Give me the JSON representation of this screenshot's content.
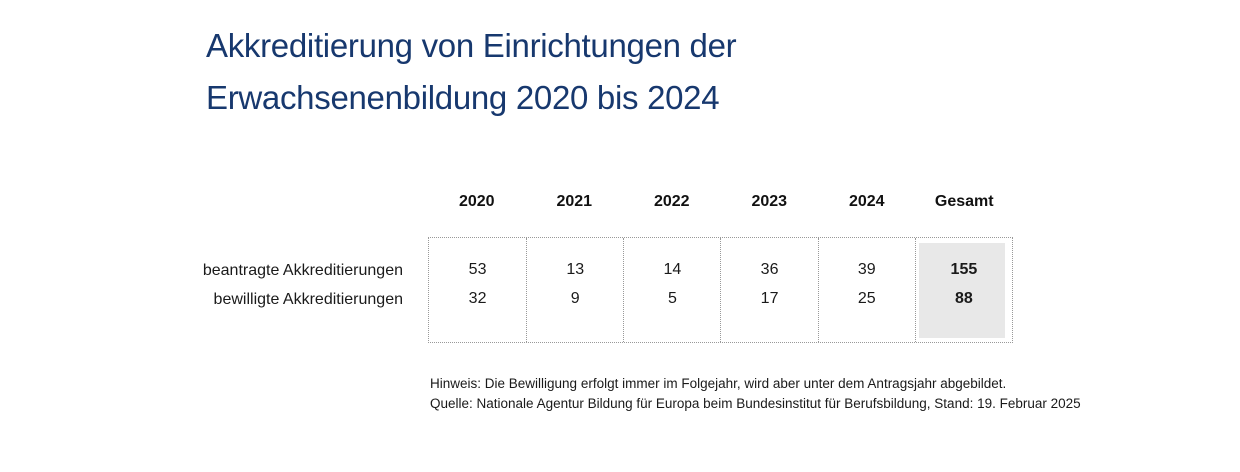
{
  "title": {
    "line1": "Akkreditierung von Einrichtungen der",
    "line2": "Erwachsenenbildung 2020 bis 2024"
  },
  "footnotes": {
    "hinweis": "Hinweis: Die Bewilligung erfolgt immer im Folgejahr, wird aber unter dem Antragsjahr abgebildet.",
    "quelle": "Quelle: Nationale Agentur Bildung für Europa beim Bundesinstitut für Berufsbildung, Stand: 19. Februar 2025"
  },
  "colors": {
    "title_blue": "#17386e",
    "total_column_bg": "#e8e8e8",
    "table_border": "#999999",
    "text": "#1a1a1a"
  },
  "chart_data": {
    "type": "table",
    "title": "Akkreditierung von Einrichtungen der Erwachsenenbildung 2020 bis 2024",
    "categories": [
      "2020",
      "2021",
      "2022",
      "2023",
      "2024",
      "Gesamt"
    ],
    "series": [
      {
        "name": "beantragte Akkreditierungen",
        "values": [
          53,
          13,
          14,
          36,
          39
        ],
        "total": 155
      },
      {
        "name": "bewilligte Akkreditierungen",
        "values": [
          32,
          9,
          5,
          17,
          25
        ],
        "total": 88
      }
    ],
    "notes": [
      "Hinweis: Die Bewilligung erfolgt immer im Folgejahr, wird aber unter dem Antragsjahr abgebildet.",
      "Quelle: Nationale Agentur Bildung für Europa beim Bundesinstitut für Berufsbildung, Stand: 19. Februar 2025"
    ]
  }
}
